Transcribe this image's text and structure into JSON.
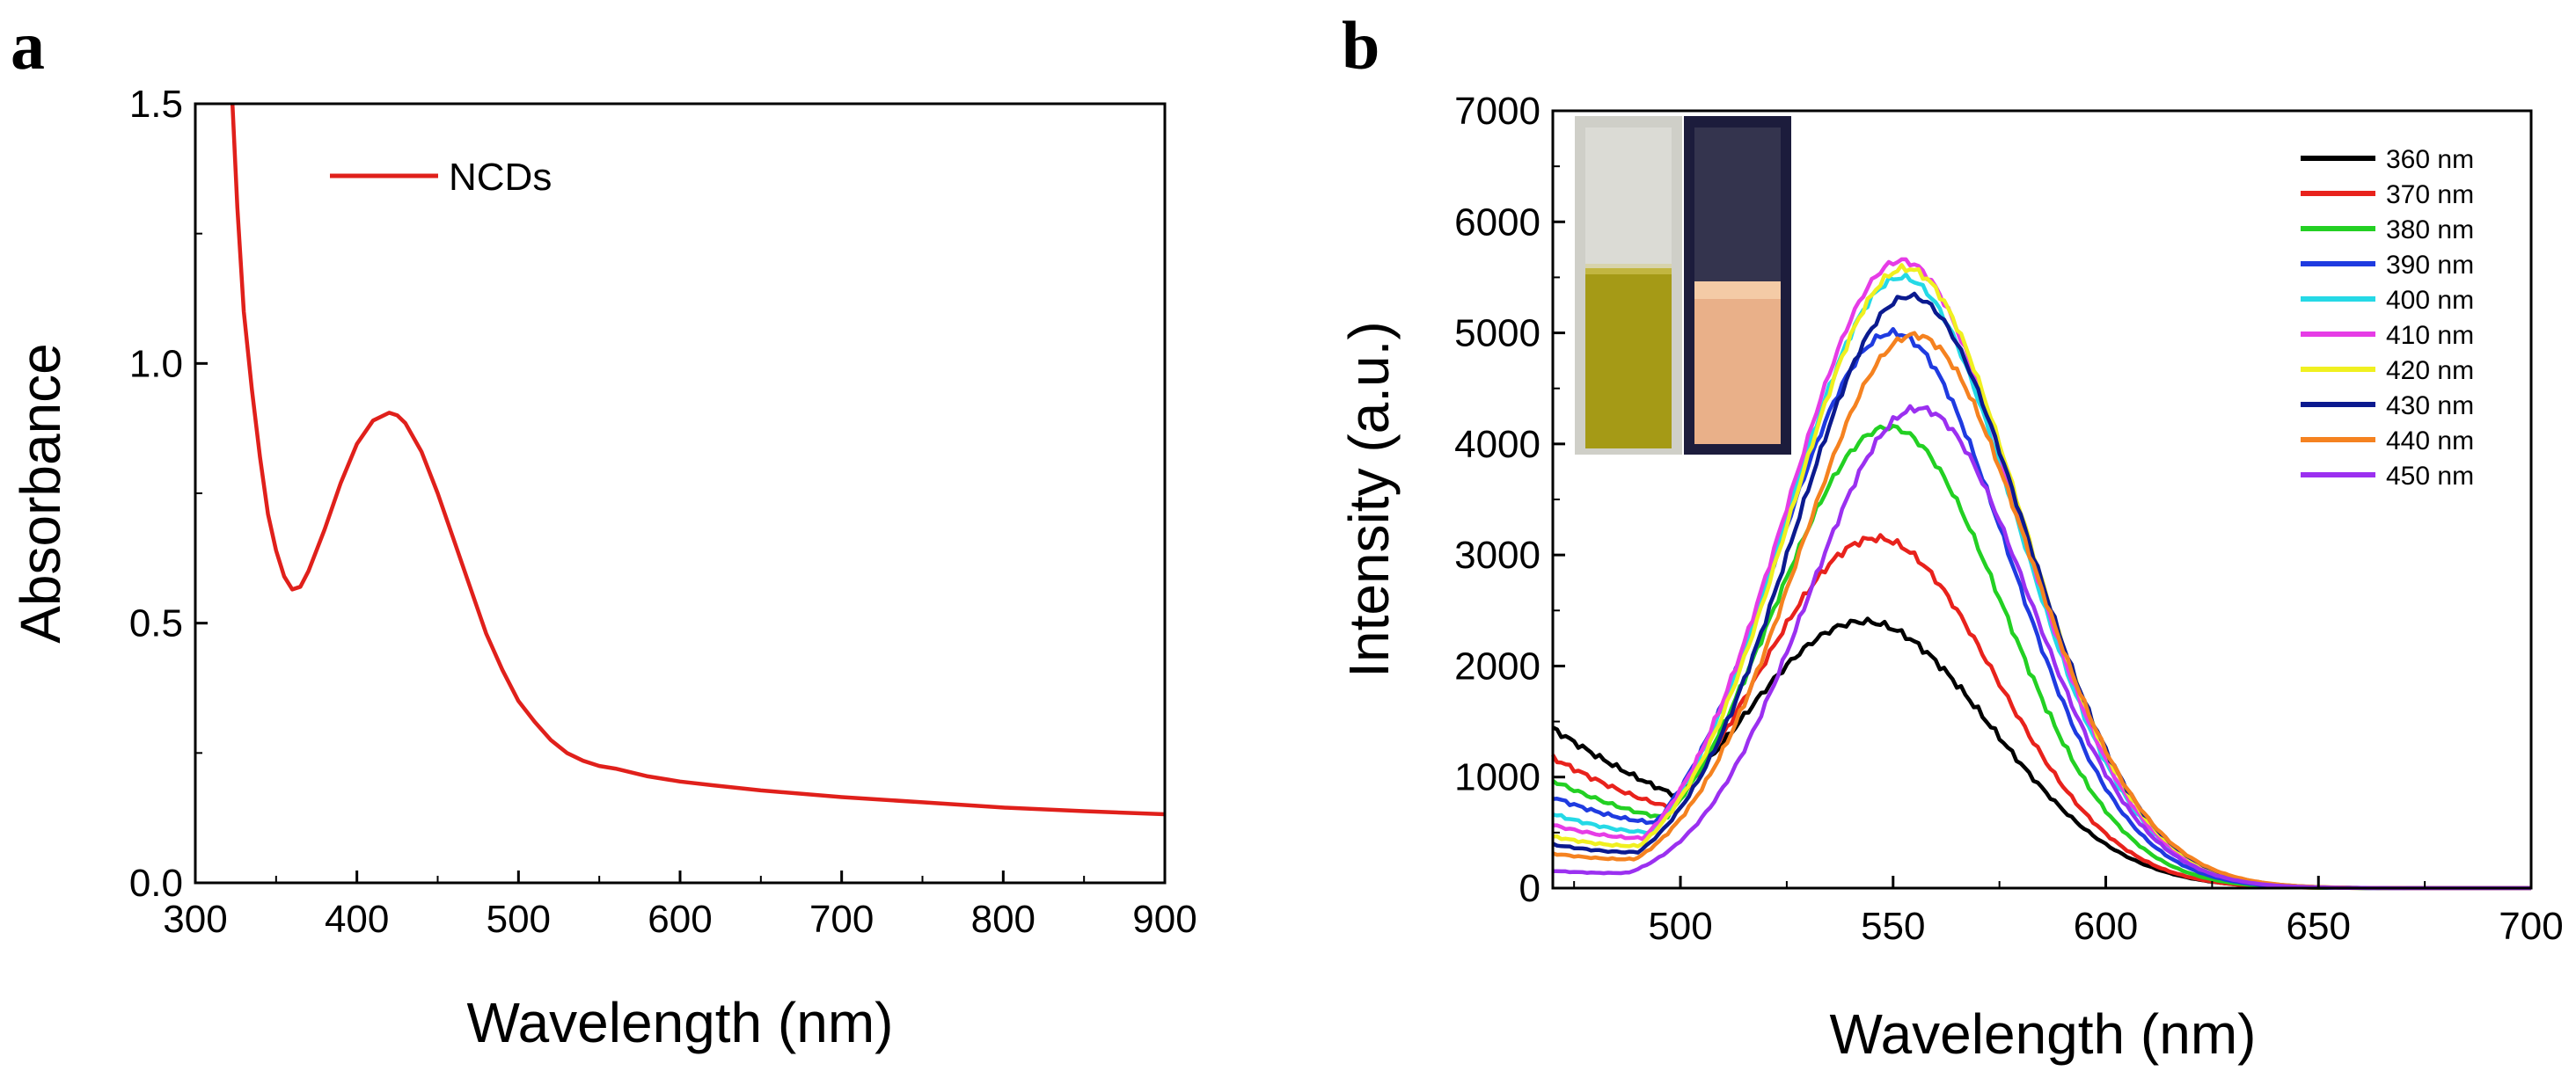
{
  "chart_data": [
    {
      "panel": "a",
      "type": "line",
      "xlabel": "Wavelength (nm)",
      "ylabel": "Absorbance",
      "xlim": [
        300,
        900
      ],
      "ylim": [
        0.0,
        1.5
      ],
      "xticks": [
        300,
        400,
        500,
        600,
        700,
        800,
        900
      ],
      "yticks": [
        "0.0",
        "0.5",
        "1.0",
        "1.5"
      ],
      "legend": {
        "placement": "top-left",
        "entries": [
          "NCDs"
        ]
      },
      "series": [
        {
          "name": "NCDs",
          "color": "#e0201b",
          "x": [
            323,
            326,
            330,
            335,
            340,
            345,
            350,
            355,
            360,
            365,
            370,
            380,
            390,
            400,
            410,
            420,
            425,
            430,
            440,
            450,
            460,
            470,
            480,
            490,
            500,
            510,
            520,
            530,
            540,
            550,
            560,
            580,
            600,
            620,
            650,
            700,
            750,
            800,
            850,
            900
          ],
          "y": [
            1.5,
            1.3,
            1.1,
            0.95,
            0.82,
            0.71,
            0.64,
            0.59,
            0.565,
            0.57,
            0.6,
            0.68,
            0.77,
            0.845,
            0.89,
            0.905,
            0.9,
            0.885,
            0.83,
            0.75,
            0.66,
            0.57,
            0.48,
            0.41,
            0.35,
            0.31,
            0.275,
            0.25,
            0.235,
            0.225,
            0.22,
            0.205,
            0.195,
            0.188,
            0.178,
            0.165,
            0.155,
            0.145,
            0.138,
            0.132
          ]
        }
      ]
    },
    {
      "panel": "b",
      "type": "line",
      "xlabel": "Wavelength (nm)",
      "ylabel": "Intensity (a.u.)",
      "xlim": [
        470,
        700
      ],
      "ylim": [
        0,
        7000
      ],
      "xticks": [
        500,
        550,
        600,
        650,
        700
      ],
      "yticks": [
        0,
        1000,
        2000,
        3000,
        4000,
        5000,
        6000,
        7000
      ],
      "legend": {
        "placement": "top-right"
      },
      "inset": "photos of cuvettes: sample under daylight (left) and under UV light (right)",
      "series": [
        {
          "name": "360 nm",
          "color": "#000000",
          "start": 1400,
          "peak": 2400,
          "peak_x": 543,
          "width": 30
        },
        {
          "name": "370 nm",
          "color": "#e8221c",
          "start": 1150,
          "peak": 3150,
          "peak_x": 546,
          "width": 28
        },
        {
          "name": "380 nm",
          "color": "#23d023",
          "start": 950,
          "peak": 4150,
          "peak_x": 549,
          "width": 27
        },
        {
          "name": "390 nm",
          "color": "#1f3be0",
          "start": 800,
          "peak": 5000,
          "peak_x": 550,
          "width": 27
        },
        {
          "name": "400 nm",
          "color": "#25d9e6",
          "start": 650,
          "peak": 5500,
          "peak_x": 552,
          "width": 27
        },
        {
          "name": "410 nm",
          "color": "#e63ce6",
          "start": 550,
          "peak": 5650,
          "peak_x": 552,
          "width": 27
        },
        {
          "name": "420 nm",
          "color": "#f0f020",
          "start": 450,
          "peak": 5580,
          "peak_x": 553,
          "width": 27
        },
        {
          "name": "430 nm",
          "color": "#0b1a8f",
          "start": 380,
          "peak": 5330,
          "peak_x": 554,
          "width": 27
        },
        {
          "name": "440 nm",
          "color": "#f58220",
          "start": 300,
          "peak": 4980,
          "peak_x": 555,
          "width": 27
        },
        {
          "name": "450 nm",
          "color": "#9b30f0",
          "start": 150,
          "peak": 4320,
          "peak_x": 556,
          "width": 26
        }
      ]
    }
  ]
}
